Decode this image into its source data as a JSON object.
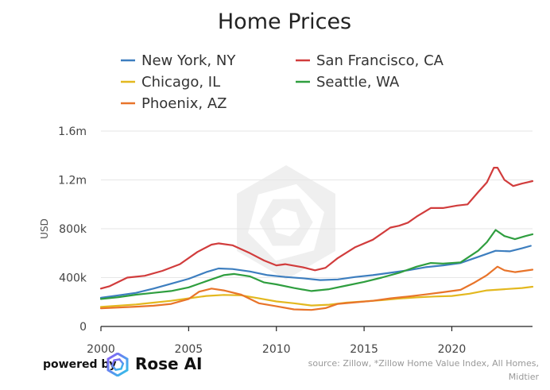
{
  "chart_data": {
    "type": "line",
    "title": "Home Prices",
    "ylabel": "USD",
    "xlabel": "",
    "xlim": [
      2000,
      2024.6
    ],
    "ylim": [
      0,
      1600000
    ],
    "x_ticks": [
      2000,
      2005,
      2010,
      2015,
      2020
    ],
    "x_tick_labels": [
      "2000",
      "2005",
      "2010",
      "2015",
      "2020"
    ],
    "y_ticks": [
      0,
      400000,
      800000,
      1200000,
      1600000
    ],
    "y_tick_labels": [
      "0",
      "400k",
      "800k",
      "1.2m",
      "1.6m"
    ],
    "grid": "horizontal",
    "legend_position": "top",
    "series": [
      {
        "name": "New York, NY",
        "color": "#3d7ebf",
        "points": [
          [
            2000,
            235000
          ],
          [
            2001,
            255000
          ],
          [
            2002,
            275000
          ],
          [
            2003,
            310000
          ],
          [
            2004,
            350000
          ],
          [
            2005,
            390000
          ],
          [
            2006,
            445000
          ],
          [
            2006.7,
            475000
          ],
          [
            2007.5,
            470000
          ],
          [
            2008.5,
            450000
          ],
          [
            2009.5,
            420000
          ],
          [
            2010.5,
            405000
          ],
          [
            2011.5,
            395000
          ],
          [
            2012.5,
            380000
          ],
          [
            2013.5,
            385000
          ],
          [
            2014.5,
            405000
          ],
          [
            2015.5,
            420000
          ],
          [
            2016.5,
            440000
          ],
          [
            2017.5,
            460000
          ],
          [
            2018.5,
            485000
          ],
          [
            2019.5,
            500000
          ],
          [
            2020.5,
            520000
          ],
          [
            2021.5,
            570000
          ],
          [
            2022.5,
            620000
          ],
          [
            2023.3,
            615000
          ],
          [
            2024,
            640000
          ],
          [
            2024.5,
            660000
          ]
        ]
      },
      {
        "name": "San Francisco, CA",
        "color": "#d13c3c",
        "points": [
          [
            2000,
            310000
          ],
          [
            2000.5,
            330000
          ],
          [
            2001.5,
            400000
          ],
          [
            2002.5,
            415000
          ],
          [
            2003.5,
            455000
          ],
          [
            2004.5,
            510000
          ],
          [
            2005.5,
            610000
          ],
          [
            2006.3,
            670000
          ],
          [
            2006.7,
            680000
          ],
          [
            2007.5,
            665000
          ],
          [
            2008.5,
            600000
          ],
          [
            2009.3,
            540000
          ],
          [
            2010,
            500000
          ],
          [
            2010.5,
            510000
          ],
          [
            2011.5,
            485000
          ],
          [
            2012.2,
            460000
          ],
          [
            2012.8,
            480000
          ],
          [
            2013.5,
            560000
          ],
          [
            2014.5,
            650000
          ],
          [
            2015.5,
            710000
          ],
          [
            2016.5,
            810000
          ],
          [
            2017,
            825000
          ],
          [
            2017.5,
            850000
          ],
          [
            2018,
            900000
          ],
          [
            2018.8,
            970000
          ],
          [
            2019.5,
            970000
          ],
          [
            2020.3,
            990000
          ],
          [
            2020.9,
            1000000
          ],
          [
            2021.5,
            1100000
          ],
          [
            2022,
            1180000
          ],
          [
            2022.4,
            1300000
          ],
          [
            2022.6,
            1300000
          ],
          [
            2023,
            1200000
          ],
          [
            2023.5,
            1150000
          ],
          [
            2024,
            1170000
          ],
          [
            2024.3,
            1180000
          ],
          [
            2024.6,
            1190000
          ]
        ]
      },
      {
        "name": "Chicago, IL",
        "color": "#e3b81f",
        "points": [
          [
            2000,
            160000
          ],
          [
            2001,
            170000
          ],
          [
            2002,
            180000
          ],
          [
            2003,
            195000
          ],
          [
            2004,
            210000
          ],
          [
            2005,
            230000
          ],
          [
            2006,
            250000
          ],
          [
            2007,
            258000
          ],
          [
            2008,
            255000
          ],
          [
            2009,
            230000
          ],
          [
            2010,
            205000
          ],
          [
            2011,
            190000
          ],
          [
            2012,
            172000
          ],
          [
            2013,
            178000
          ],
          [
            2014,
            195000
          ],
          [
            2015,
            205000
          ],
          [
            2016,
            215000
          ],
          [
            2017,
            228000
          ],
          [
            2018,
            238000
          ],
          [
            2019,
            245000
          ],
          [
            2020,
            250000
          ],
          [
            2021,
            268000
          ],
          [
            2022,
            295000
          ],
          [
            2023,
            305000
          ],
          [
            2024,
            315000
          ],
          [
            2024.6,
            325000
          ]
        ]
      },
      {
        "name": "Seattle, WA",
        "color": "#2f9e3f",
        "points": [
          [
            2000,
            225000
          ],
          [
            2001,
            240000
          ],
          [
            2002,
            260000
          ],
          [
            2003,
            275000
          ],
          [
            2004,
            290000
          ],
          [
            2005,
            320000
          ],
          [
            2006,
            370000
          ],
          [
            2007,
            420000
          ],
          [
            2007.6,
            430000
          ],
          [
            2008.5,
            410000
          ],
          [
            2009.3,
            360000
          ],
          [
            2010,
            345000
          ],
          [
            2011,
            315000
          ],
          [
            2012,
            290000
          ],
          [
            2013,
            305000
          ],
          [
            2014,
            335000
          ],
          [
            2015,
            365000
          ],
          [
            2016,
            400000
          ],
          [
            2017,
            440000
          ],
          [
            2018,
            490000
          ],
          [
            2018.8,
            520000
          ],
          [
            2019.5,
            515000
          ],
          [
            2020.5,
            525000
          ],
          [
            2021.5,
            620000
          ],
          [
            2022,
            690000
          ],
          [
            2022.5,
            790000
          ],
          [
            2023,
            740000
          ],
          [
            2023.6,
            715000
          ],
          [
            2024.2,
            740000
          ],
          [
            2024.6,
            755000
          ]
        ]
      },
      {
        "name": "Phoenix, AZ",
        "color": "#e8742a",
        "points": [
          [
            2000,
            148000
          ],
          [
            2001,
            155000
          ],
          [
            2002,
            162000
          ],
          [
            2003,
            170000
          ],
          [
            2004,
            185000
          ],
          [
            2005,
            225000
          ],
          [
            2005.6,
            285000
          ],
          [
            2006.3,
            310000
          ],
          [
            2007,
            295000
          ],
          [
            2008,
            260000
          ],
          [
            2009,
            190000
          ],
          [
            2010,
            165000
          ],
          [
            2011,
            140000
          ],
          [
            2012,
            135000
          ],
          [
            2012.8,
            150000
          ],
          [
            2013.5,
            185000
          ],
          [
            2014.5,
            198000
          ],
          [
            2015.5,
            210000
          ],
          [
            2016.5,
            230000
          ],
          [
            2017.5,
            245000
          ],
          [
            2018.5,
            262000
          ],
          [
            2019.5,
            280000
          ],
          [
            2020.5,
            300000
          ],
          [
            2021.3,
            360000
          ],
          [
            2022,
            420000
          ],
          [
            2022.6,
            490000
          ],
          [
            2023,
            460000
          ],
          [
            2023.6,
            445000
          ],
          [
            2024.6,
            465000
          ]
        ]
      }
    ]
  },
  "footer": {
    "powered_by": "powered by",
    "brand": "Rose AI",
    "source": "source: Zillow, *Zillow Home Value Index, All Homes, Midtier"
  }
}
